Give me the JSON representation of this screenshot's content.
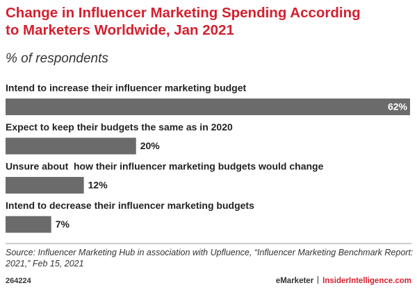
{
  "chart_data": {
    "type": "bar",
    "title": "Change in Influencer Marketing Spending According to Marketers Worldwide, Jan 2021",
    "subtitle": "% of respondents",
    "categories": [
      "Intend to increase their influencer marketing budget",
      "Expect to keep their budgets the same as in 2020",
      "Unsure about  how their influencer marketing budgets would change",
      "Intend to decrease their influencer marketing budgets"
    ],
    "values": [
      62,
      20,
      12,
      7
    ],
    "value_labels": [
      "62%",
      "20%",
      "12%",
      "7%"
    ],
    "color": "#6b6b6b",
    "source": "Source: Influencer Marketing Hub in association with Upfluence, “Influencer Marketing Benchmark Report: 2021,” Feb 15, 2021",
    "chart_id": "264224",
    "brand": "eMarketer",
    "site": "InsiderIntelligence.com"
  }
}
